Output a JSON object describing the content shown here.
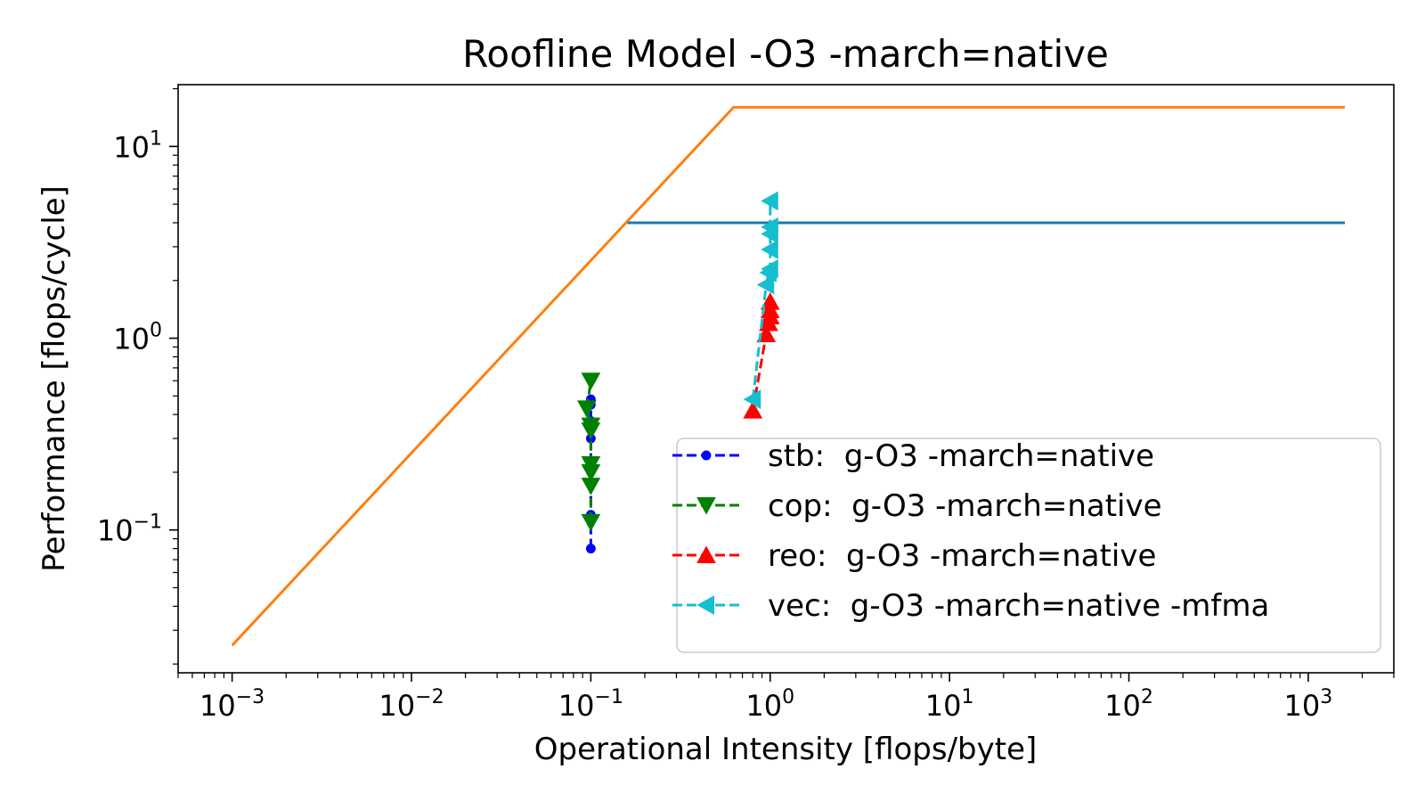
{
  "chart_data": {
    "type": "line",
    "title": "Roofline Model -O3 -march=native",
    "xlabel": "Operational Intensity [flops/byte]",
    "ylabel": "Performance [flops/cycle]",
    "xscale": "log",
    "yscale": "log",
    "xlim": [
      0.0005,
      3000
    ],
    "ylim": [
      0.018,
      21
    ],
    "x_ticks": [
      {
        "value": 0.001,
        "base": "10",
        "exp": "−3"
      },
      {
        "value": 0.01,
        "base": "10",
        "exp": "−2"
      },
      {
        "value": 0.1,
        "base": "10",
        "exp": "−1"
      },
      {
        "value": 1,
        "base": "10",
        "exp": "0"
      },
      {
        "value": 10,
        "base": "10",
        "exp": "1"
      },
      {
        "value": 100,
        "base": "10",
        "exp": "2"
      },
      {
        "value": 1000,
        "base": "10",
        "exp": "3"
      }
    ],
    "y_ticks": [
      {
        "value": 0.1,
        "base": "10",
        "exp": "−1"
      },
      {
        "value": 1,
        "base": "10",
        "exp": "0"
      },
      {
        "value": 10,
        "base": "10",
        "exp": "1"
      }
    ],
    "grid": false,
    "legend_position": "lower-right",
    "roofs": [
      {
        "color": "#ff7f0e",
        "x": [
          0.001,
          0.625,
          1600
        ],
        "y": [
          0.025,
          16,
          16
        ]
      },
      {
        "color": "#1f77b4",
        "x": [
          0.16,
          1600
        ],
        "y": [
          4,
          4
        ]
      }
    ],
    "series": [
      {
        "name": "stb:  g-O3 -march=native",
        "color": "#0000ff",
        "marker": "circle",
        "x": [
          0.1,
          0.1,
          0.1,
          0.1,
          0.1,
          0.1,
          0.1
        ],
        "y": [
          0.08,
          0.12,
          0.21,
          0.3,
          0.37,
          0.48,
          0.45
        ]
      },
      {
        "name": "cop:  g-O3 -march=native",
        "color": "#008000",
        "marker": "triangle-down",
        "x": [
          0.1,
          0.1,
          0.1,
          0.1,
          0.1,
          0.1,
          0.095,
          0.1
        ],
        "y": [
          0.11,
          0.17,
          0.2,
          0.22,
          0.33,
          0.35,
          0.43,
          0.6
        ]
      },
      {
        "name": "reo:  g-O3 -march=native",
        "color": "#ff0000",
        "marker": "triangle-up",
        "x": [
          0.8,
          0.95,
          0.98,
          1.0,
          1.0,
          1.0
        ],
        "y": [
          0.42,
          1.05,
          1.2,
          1.3,
          1.4,
          1.55
        ]
      },
      {
        "name": "vec:  g-O3 -march=native -mfma",
        "color": "#17becf",
        "marker": "triangle-left",
        "x": [
          0.8,
          0.95,
          0.98,
          1.0,
          1.0,
          1.0,
          1.0,
          1.0
        ],
        "y": [
          0.48,
          1.9,
          2.2,
          2.3,
          2.9,
          3.5,
          3.8,
          5.2
        ]
      }
    ]
  }
}
